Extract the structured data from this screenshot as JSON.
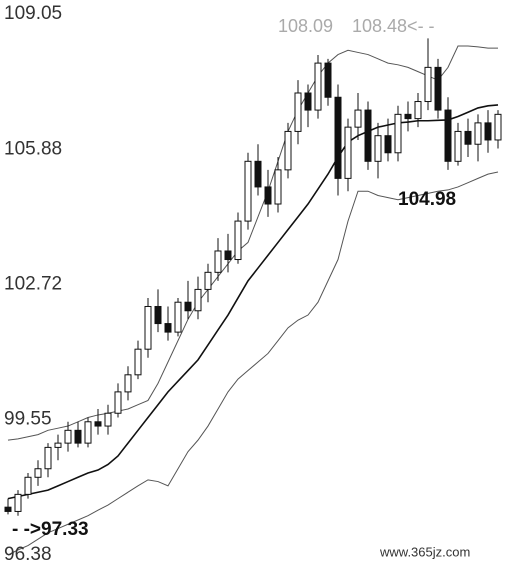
{
  "chart_data": {
    "type": "candlestick",
    "ylim": [
      96.38,
      109.05
    ],
    "yticks": [
      109.05,
      105.88,
      102.72,
      99.55,
      96.38
    ],
    "grid": false,
    "up_color": "#ffffff",
    "down_color": "#111111",
    "open": [
      97.5,
      97.4,
      97.8,
      98.2,
      98.4,
      98.9,
      99.0,
      99.3,
      99.0,
      99.5,
      99.4,
      99.7,
      100.2,
      100.6,
      101.2,
      102.2,
      101.8,
      101.6,
      102.3,
      102.1,
      102.6,
      103.0,
      103.5,
      103.3,
      104.2,
      105.6,
      105.0,
      104.6,
      105.4,
      106.3,
      107.2,
      106.8,
      107.9,
      107.1,
      105.2,
      106.4,
      106.8,
      105.6,
      106.2,
      105.8,
      106.7,
      106.6,
      107.0,
      107.8,
      106.8,
      105.6,
      106.3,
      106.0,
      106.5,
      106.1
    ],
    "high": [
      97.7,
      97.9,
      98.3,
      98.6,
      99.0,
      99.2,
      99.5,
      99.5,
      99.6,
      99.8,
      99.9,
      100.4,
      100.8,
      101.4,
      102.4,
      102.6,
      102.2,
      102.4,
      102.8,
      102.9,
      103.2,
      103.8,
      103.9,
      104.4,
      105.8,
      106.0,
      105.4,
      105.7,
      106.5,
      107.5,
      107.4,
      108.09,
      108.0,
      107.4,
      106.6,
      107.2,
      107.0,
      106.5,
      106.6,
      106.9,
      107.0,
      107.2,
      108.48,
      108.0,
      107.1,
      106.5,
      106.6,
      106.7,
      106.8,
      106.8
    ],
    "low": [
      97.33,
      97.3,
      97.7,
      98.0,
      98.2,
      98.6,
      98.8,
      98.9,
      98.9,
      99.2,
      99.2,
      99.6,
      100.0,
      100.5,
      101.0,
      101.6,
      101.4,
      101.5,
      101.9,
      101.9,
      102.3,
      102.8,
      103.0,
      103.2,
      104.0,
      104.8,
      104.3,
      104.4,
      105.2,
      106.0,
      106.4,
      106.6,
      106.9,
      104.8,
      104.9,
      106.1,
      105.4,
      105.2,
      105.6,
      105.6,
      106.3,
      106.4,
      106.8,
      106.6,
      105.4,
      105.5,
      105.7,
      105.6,
      105.8,
      105.9
    ],
    "close": [
      97.4,
      97.8,
      98.2,
      98.4,
      98.9,
      99.0,
      99.3,
      99.0,
      99.5,
      99.4,
      99.7,
      100.2,
      100.6,
      101.2,
      102.2,
      101.8,
      101.6,
      102.3,
      102.1,
      102.6,
      103.0,
      103.5,
      103.3,
      104.2,
      105.6,
      105.0,
      104.6,
      105.4,
      106.3,
      107.2,
      106.8,
      107.9,
      107.1,
      105.2,
      106.4,
      106.8,
      105.6,
      106.2,
      105.8,
      106.7,
      106.6,
      107.0,
      107.8,
      106.8,
      105.6,
      106.3,
      106.0,
      106.5,
      106.1,
      106.7
    ],
    "lines": [
      {
        "color": "#555555",
        "values": [
          99.07,
          99.1,
          99.15,
          99.2,
          99.3,
          99.35,
          99.4,
          99.5,
          99.6,
          99.66,
          99.7,
          99.75,
          99.8,
          99.9,
          100.0,
          100.4,
          100.9,
          101.4,
          101.9,
          102.3,
          102.6,
          102.9,
          103.2,
          103.5,
          103.7,
          104.3,
          104.9,
          105.6,
          106.3,
          106.8,
          107.2,
          107.6,
          107.9,
          108.1,
          108.2,
          108.15,
          108.1,
          108.0,
          107.9,
          107.86,
          107.8,
          107.7,
          107.6,
          107.5,
          107.8,
          108.3,
          108.3,
          108.28,
          108.25,
          108.25
        ]
      },
      {
        "color": "#111111",
        "values": [
          97.7,
          97.75,
          97.8,
          97.85,
          97.9,
          98.0,
          98.1,
          98.2,
          98.3,
          98.37,
          98.5,
          98.7,
          99.0,
          99.3,
          99.6,
          99.9,
          100.2,
          100.45,
          100.7,
          100.95,
          101.3,
          101.65,
          102.0,
          102.4,
          102.8,
          103.1,
          103.4,
          103.7,
          104.0,
          104.3,
          104.6,
          104.95,
          105.3,
          105.7,
          106.05,
          106.2,
          106.3,
          106.4,
          106.45,
          106.5,
          106.52,
          106.55,
          106.55,
          106.56,
          106.57,
          106.65,
          106.75,
          106.85,
          106.9,
          106.92
        ]
      },
      {
        "color": "#555555",
        "values": [
          96.38,
          96.5,
          96.6,
          96.75,
          96.9,
          97.0,
          97.1,
          97.2,
          97.3,
          97.43,
          97.55,
          97.7,
          97.85,
          98.0,
          98.14,
          98.1,
          98.0,
          98.4,
          98.8,
          99.07,
          99.4,
          99.8,
          100.2,
          100.5,
          100.7,
          100.9,
          101.1,
          101.4,
          101.7,
          101.88,
          102.0,
          102.3,
          102.8,
          103.3,
          104.2,
          104.9,
          104.9,
          104.8,
          104.75,
          104.7,
          104.75,
          104.8,
          104.85,
          104.9,
          104.93,
          105.0,
          105.1,
          105.2,
          105.3,
          105.35
        ]
      }
    ],
    "annotations": [
      "108.09",
      "108.48<- -",
      "104.98",
      "- ->97.33"
    ],
    "watermark": "www.365jz.com"
  }
}
